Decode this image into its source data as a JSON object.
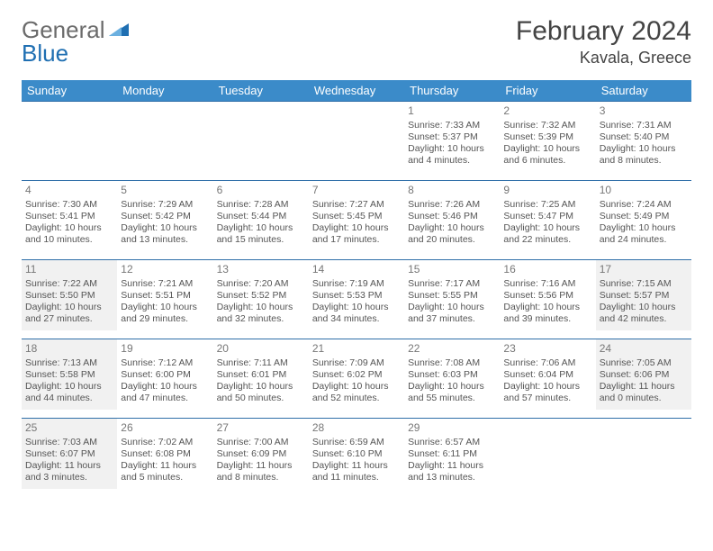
{
  "brand": {
    "part1": "General",
    "part2": "Blue"
  },
  "title": "February 2024",
  "location": "Kavala, Greece",
  "colors": {
    "header_bg": "#3b8bc9",
    "header_text": "#ffffff",
    "row_border": "#2f6fa8",
    "shade_bg": "#f1f1f1",
    "body_text": "#555555",
    "title_text": "#444444",
    "logo_gray": "#6b6b6b",
    "logo_blue": "#1f6fb2"
  },
  "weekdays": [
    "Sunday",
    "Monday",
    "Tuesday",
    "Wednesday",
    "Thursday",
    "Friday",
    "Saturday"
  ],
  "weeks": [
    [
      null,
      null,
      null,
      null,
      {
        "n": "1",
        "sr": "Sunrise: 7:33 AM",
        "ss": "Sunset: 5:37 PM",
        "dl": "Daylight: 10 hours and 4 minutes."
      },
      {
        "n": "2",
        "sr": "Sunrise: 7:32 AM",
        "ss": "Sunset: 5:39 PM",
        "dl": "Daylight: 10 hours and 6 minutes."
      },
      {
        "n": "3",
        "sr": "Sunrise: 7:31 AM",
        "ss": "Sunset: 5:40 PM",
        "dl": "Daylight: 10 hours and 8 minutes."
      }
    ],
    [
      {
        "n": "4",
        "sr": "Sunrise: 7:30 AM",
        "ss": "Sunset: 5:41 PM",
        "dl": "Daylight: 10 hours and 10 minutes."
      },
      {
        "n": "5",
        "sr": "Sunrise: 7:29 AM",
        "ss": "Sunset: 5:42 PM",
        "dl": "Daylight: 10 hours and 13 minutes."
      },
      {
        "n": "6",
        "sr": "Sunrise: 7:28 AM",
        "ss": "Sunset: 5:44 PM",
        "dl": "Daylight: 10 hours and 15 minutes."
      },
      {
        "n": "7",
        "sr": "Sunrise: 7:27 AM",
        "ss": "Sunset: 5:45 PM",
        "dl": "Daylight: 10 hours and 17 minutes."
      },
      {
        "n": "8",
        "sr": "Sunrise: 7:26 AM",
        "ss": "Sunset: 5:46 PM",
        "dl": "Daylight: 10 hours and 20 minutes."
      },
      {
        "n": "9",
        "sr": "Sunrise: 7:25 AM",
        "ss": "Sunset: 5:47 PM",
        "dl": "Daylight: 10 hours and 22 minutes."
      },
      {
        "n": "10",
        "sr": "Sunrise: 7:24 AM",
        "ss": "Sunset: 5:49 PM",
        "dl": "Daylight: 10 hours and 24 minutes."
      }
    ],
    [
      {
        "n": "11",
        "sr": "Sunrise: 7:22 AM",
        "ss": "Sunset: 5:50 PM",
        "dl": "Daylight: 10 hours and 27 minutes.",
        "shade": true
      },
      {
        "n": "12",
        "sr": "Sunrise: 7:21 AM",
        "ss": "Sunset: 5:51 PM",
        "dl": "Daylight: 10 hours and 29 minutes."
      },
      {
        "n": "13",
        "sr": "Sunrise: 7:20 AM",
        "ss": "Sunset: 5:52 PM",
        "dl": "Daylight: 10 hours and 32 minutes."
      },
      {
        "n": "14",
        "sr": "Sunrise: 7:19 AM",
        "ss": "Sunset: 5:53 PM",
        "dl": "Daylight: 10 hours and 34 minutes."
      },
      {
        "n": "15",
        "sr": "Sunrise: 7:17 AM",
        "ss": "Sunset: 5:55 PM",
        "dl": "Daylight: 10 hours and 37 minutes."
      },
      {
        "n": "16",
        "sr": "Sunrise: 7:16 AM",
        "ss": "Sunset: 5:56 PM",
        "dl": "Daylight: 10 hours and 39 minutes."
      },
      {
        "n": "17",
        "sr": "Sunrise: 7:15 AM",
        "ss": "Sunset: 5:57 PM",
        "dl": "Daylight: 10 hours and 42 minutes.",
        "shade": true
      }
    ],
    [
      {
        "n": "18",
        "sr": "Sunrise: 7:13 AM",
        "ss": "Sunset: 5:58 PM",
        "dl": "Daylight: 10 hours and 44 minutes.",
        "shade": true
      },
      {
        "n": "19",
        "sr": "Sunrise: 7:12 AM",
        "ss": "Sunset: 6:00 PM",
        "dl": "Daylight: 10 hours and 47 minutes."
      },
      {
        "n": "20",
        "sr": "Sunrise: 7:11 AM",
        "ss": "Sunset: 6:01 PM",
        "dl": "Daylight: 10 hours and 50 minutes."
      },
      {
        "n": "21",
        "sr": "Sunrise: 7:09 AM",
        "ss": "Sunset: 6:02 PM",
        "dl": "Daylight: 10 hours and 52 minutes."
      },
      {
        "n": "22",
        "sr": "Sunrise: 7:08 AM",
        "ss": "Sunset: 6:03 PM",
        "dl": "Daylight: 10 hours and 55 minutes."
      },
      {
        "n": "23",
        "sr": "Sunrise: 7:06 AM",
        "ss": "Sunset: 6:04 PM",
        "dl": "Daylight: 10 hours and 57 minutes."
      },
      {
        "n": "24",
        "sr": "Sunrise: 7:05 AM",
        "ss": "Sunset: 6:06 PM",
        "dl": "Daylight: 11 hours and 0 minutes.",
        "shade": true
      }
    ],
    [
      {
        "n": "25",
        "sr": "Sunrise: 7:03 AM",
        "ss": "Sunset: 6:07 PM",
        "dl": "Daylight: 11 hours and 3 minutes.",
        "shade": true
      },
      {
        "n": "26",
        "sr": "Sunrise: 7:02 AM",
        "ss": "Sunset: 6:08 PM",
        "dl": "Daylight: 11 hours and 5 minutes."
      },
      {
        "n": "27",
        "sr": "Sunrise: 7:00 AM",
        "ss": "Sunset: 6:09 PM",
        "dl": "Daylight: 11 hours and 8 minutes."
      },
      {
        "n": "28",
        "sr": "Sunrise: 6:59 AM",
        "ss": "Sunset: 6:10 PM",
        "dl": "Daylight: 11 hours and 11 minutes."
      },
      {
        "n": "29",
        "sr": "Sunrise: 6:57 AM",
        "ss": "Sunset: 6:11 PM",
        "dl": "Daylight: 11 hours and 13 minutes."
      },
      null,
      null
    ]
  ]
}
